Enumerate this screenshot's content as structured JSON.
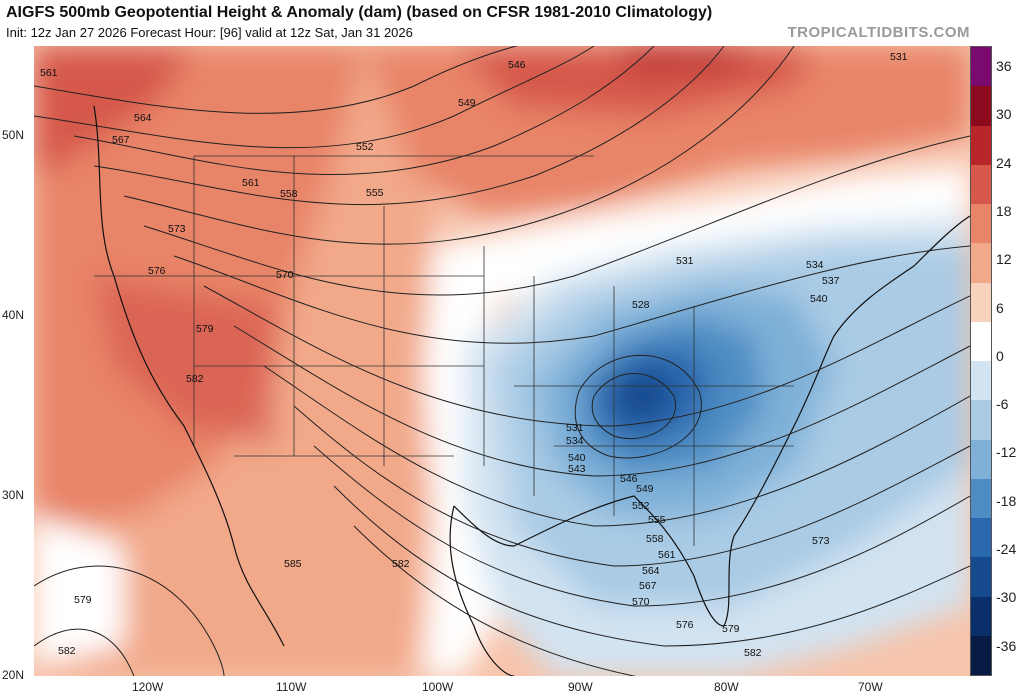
{
  "header": {
    "title": "AIGFS 500mb Geopotential Height & Anomaly (dam) (based on CFSR 1981-2010 Climatology)",
    "subtitle": "Init: 12z Jan 27 2026   Forecast Hour: [96]   valid at 12z Sat, Jan 31 2026",
    "brand": "TROPICALTIDBITS.COM"
  },
  "axes": {
    "lat_labels": [
      "50N",
      "40N",
      "30N",
      "20N"
    ],
    "lon_labels": [
      "120W",
      "110W",
      "100W",
      "90W",
      "80W",
      "70W"
    ]
  },
  "colorbar": {
    "labels": [
      "36",
      "30",
      "24",
      "18",
      "12",
      "6",
      "0",
      "-6",
      "-12",
      "-18",
      "-24",
      "-30",
      "-36"
    ],
    "colors": [
      "#7a0a6e",
      "#8b0a1e",
      "#b8262a",
      "#d6584b",
      "#e88468",
      "#f2a98a",
      "#f9d2bd",
      "#ffffff",
      "#d2e3f1",
      "#a9cbe5",
      "#7eb0d8",
      "#4e8cc3",
      "#2a68ad",
      "#154a8e",
      "#0b2f68",
      "#061c45"
    ]
  },
  "contours": {
    "labels": [
      "546",
      "531",
      "561",
      "564",
      "567",
      "549",
      "552",
      "561",
      "558",
      "555",
      "573",
      "570",
      "576",
      "579",
      "582",
      "528",
      "531",
      "534",
      "537",
      "540",
      "531",
      "534",
      "540",
      "543",
      "546",
      "549",
      "552",
      "555",
      "558",
      "561",
      "564",
      "567",
      "570",
      "573",
      "576",
      "579",
      "582",
      "585",
      "582",
      "579",
      "582"
    ]
  }
}
